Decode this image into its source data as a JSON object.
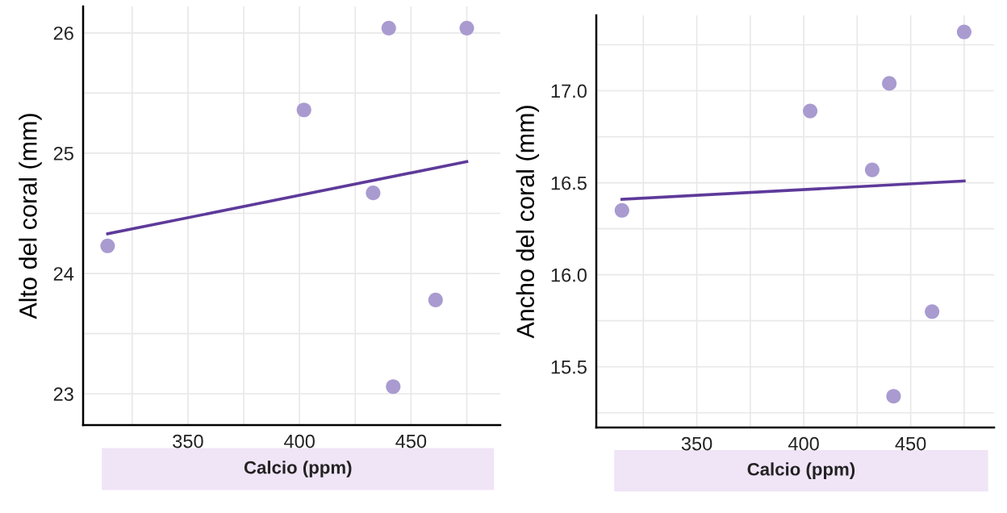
{
  "chart_data": [
    {
      "type": "scatter",
      "xlabel": "Calcio (ppm)",
      "ylabel": "Alto del coral (mm)",
      "grid": true,
      "legend": false,
      "xlim": [
        303,
        490
      ],
      "ylim": [
        22.74,
        26.22
      ],
      "xticks": [
        {
          "value": 325,
          "label": null
        },
        350,
        {
          "value": 375,
          "label": null
        },
        400,
        {
          "value": 425,
          "label": null
        },
        450,
        {
          "value": 475,
          "label": null
        }
      ],
      "yticks": [
        23,
        {
          "value": 23.5,
          "label": null
        },
        24,
        {
          "value": 24.5,
          "label": null
        },
        25,
        {
          "value": 25.5,
          "label": null
        },
        26
      ],
      "series": [
        {
          "marker": "circle",
          "color": "#a99bd0",
          "x": [
            314,
            402,
            440,
            475,
            433,
            461,
            442
          ],
          "values": [
            24.23,
            25.36,
            26.04,
            26.04,
            24.67,
            23.78,
            23.06
          ]
        },
        {
          "type": "line",
          "color": "#5e3a9a",
          "x": [
            314,
            475
          ],
          "values": [
            24.33,
            24.93
          ]
        }
      ]
    },
    {
      "type": "scatter",
      "xlabel": "Calcio (ppm)",
      "ylabel": "Ancho del coral (mm)",
      "grid": true,
      "legend": false,
      "xlim": [
        303,
        489
      ],
      "ylim": [
        15.17,
        17.41
      ],
      "xticks": [
        {
          "value": 325,
          "label": null
        },
        350,
        {
          "value": 375,
          "label": null
        },
        400,
        {
          "value": 425,
          "label": null
        },
        450,
        {
          "value": 475,
          "label": null
        }
      ],
      "yticks": [
        {
          "value": 15.25,
          "label": null
        },
        {
          "value": 15.5,
          "label": "15.5"
        },
        {
          "value": 15.75,
          "label": null
        },
        {
          "value": 16.0,
          "label": "16.0"
        },
        {
          "value": 16.25,
          "label": null
        },
        {
          "value": 16.5,
          "label": "16.5"
        },
        {
          "value": 16.75,
          "label": null
        },
        {
          "value": 17.0,
          "label": "17.0"
        },
        {
          "value": 17.25,
          "label": null
        }
      ],
      "series": [
        {
          "marker": "circle",
          "color": "#a99bd0",
          "x": [
            315,
            403,
            440,
            432,
            475,
            460,
            442
          ],
          "values": [
            16.35,
            16.89,
            17.04,
            16.57,
            17.32,
            15.8,
            15.34
          ]
        },
        {
          "type": "line",
          "color": "#5e3a9a",
          "x": [
            315,
            475
          ],
          "values": [
            16.41,
            16.51
          ]
        }
      ]
    }
  ]
}
